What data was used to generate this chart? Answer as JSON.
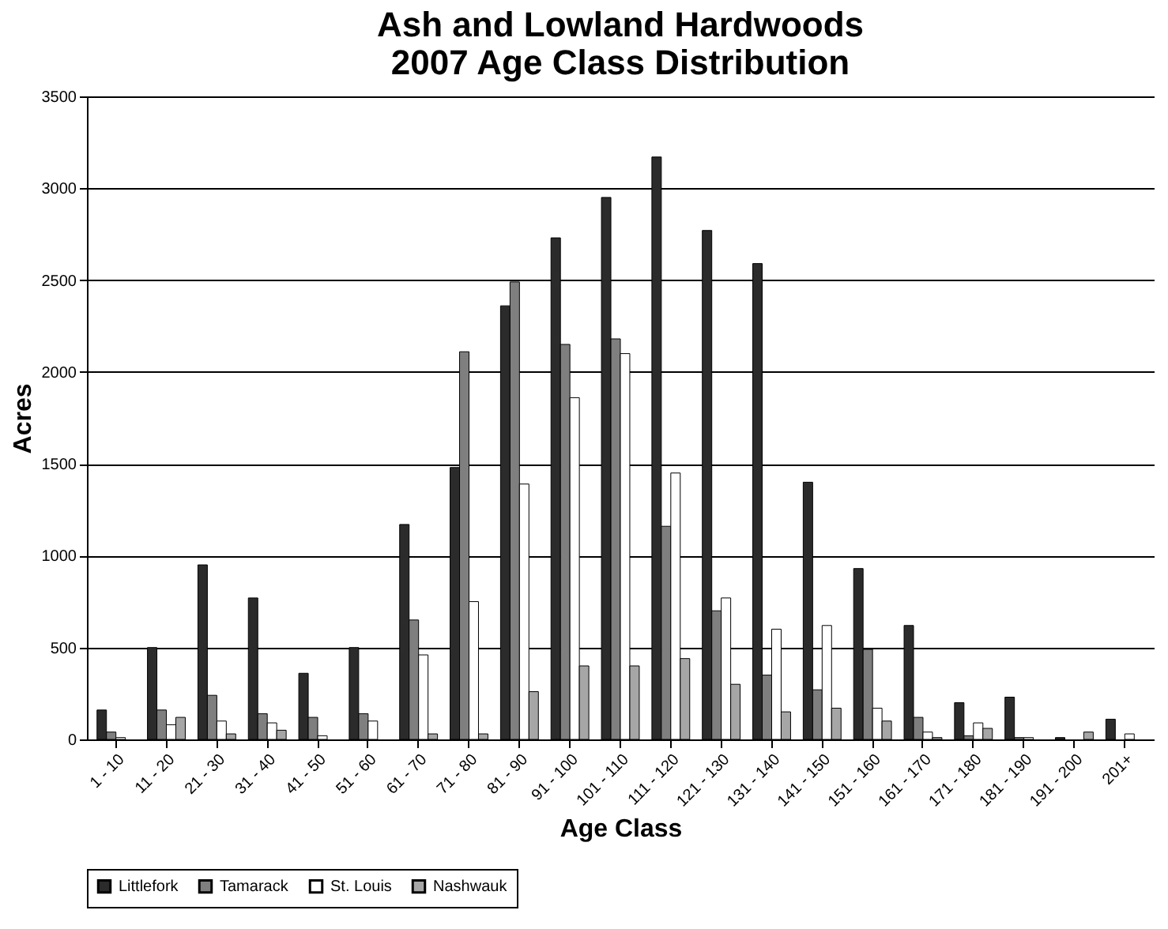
{
  "chart_data": {
    "type": "bar",
    "title": "Ash and Lowland Hardwoods\n2007 Age Class Distribution",
    "xlabel": "Age Class",
    "ylabel": "Acres",
    "categories": [
      "1 - 10",
      "11 - 20",
      "21 - 30",
      "31 - 40",
      "41 - 50",
      "51 - 60",
      "61 - 70",
      "71 - 80",
      "81 - 90",
      "91 - 100",
      "101 - 110",
      "111 - 120",
      "121 - 130",
      "131 - 140",
      "141 - 150",
      "151 - 160",
      "161 - 170",
      "171 - 180",
      "181 - 190",
      "191 - 200",
      "201+"
    ],
    "series": [
      {
        "name": "Littlefork",
        "color": "#2b2b2b",
        "values": [
          160,
          500,
          950,
          770,
          360,
          500,
          1170,
          1480,
          2360,
          2730,
          2950,
          3170,
          2770,
          2590,
          1400,
          930,
          620,
          200,
          230,
          10,
          110
        ]
      },
      {
        "name": "Tamarack",
        "color": "#7f7f7f",
        "values": [
          40,
          160,
          240,
          140,
          120,
          140,
          650,
          2110,
          2490,
          2150,
          2180,
          1160,
          700,
          350,
          270,
          490,
          120,
          20,
          10,
          null,
          null
        ]
      },
      {
        "name": "St. Louis",
        "color": "#ffffff",
        "values": [
          10,
          80,
          100,
          90,
          20,
          100,
          460,
          750,
          1390,
          1860,
          2100,
          1450,
          770,
          600,
          620,
          170,
          40,
          90,
          10,
          null,
          30
        ]
      },
      {
        "name": "Nashwauk",
        "color": "#a6a6a6",
        "values": [
          null,
          120,
          30,
          50,
          null,
          null,
          30,
          30,
          260,
          400,
          400,
          440,
          300,
          150,
          170,
          100,
          10,
          60,
          null,
          40,
          null
        ]
      }
    ],
    "ylim": [
      0,
      3500
    ],
    "yticks": [
      0,
      500,
      1000,
      1500,
      2000,
      2500,
      3000,
      3500
    ],
    "grid": "y",
    "legend": "bottom"
  }
}
